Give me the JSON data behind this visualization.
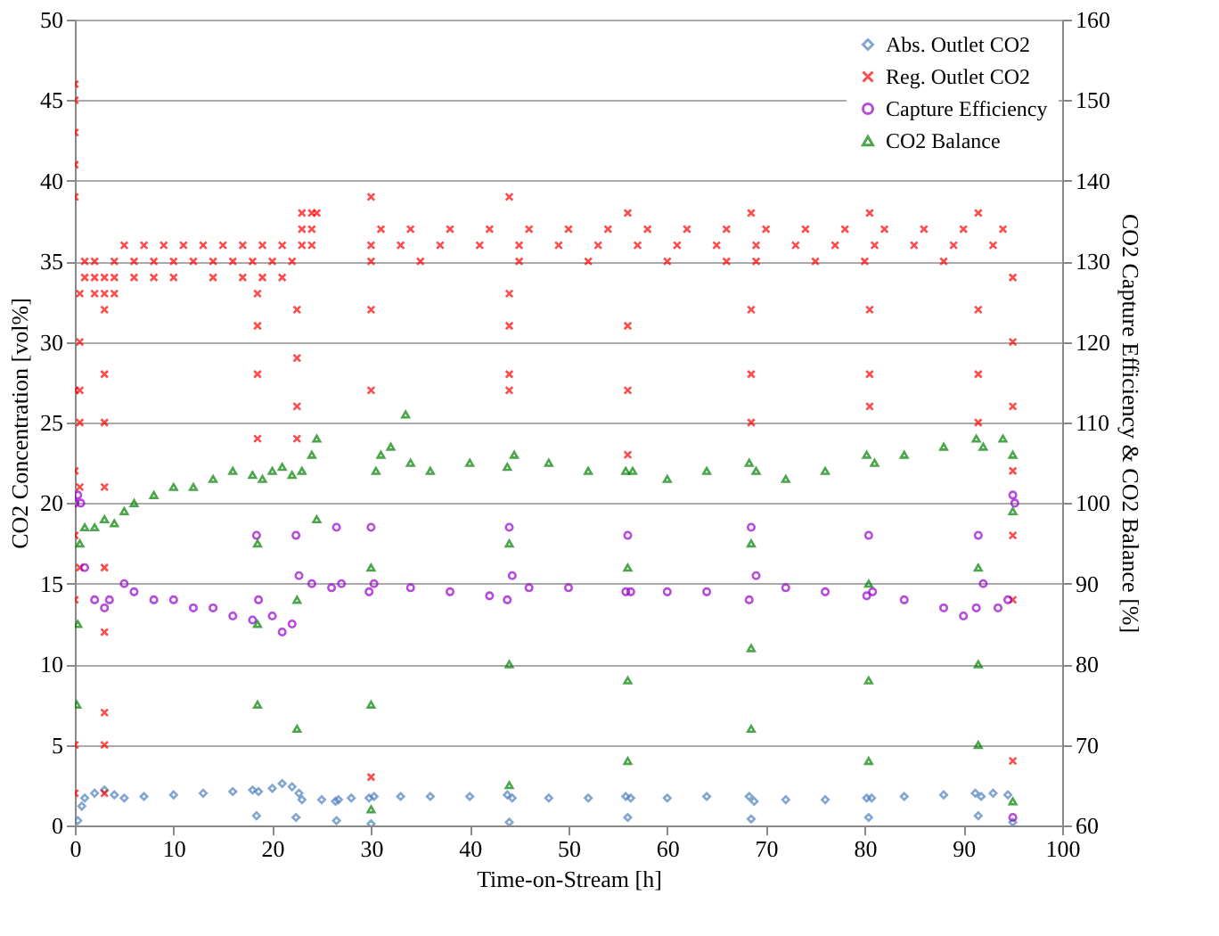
{
  "chart_data": {
    "type": "scatter",
    "xlabel": "Time-on-Stream [h]",
    "ylabel": "CO2 Concentration [vol%]",
    "y2label": "CO2 Capture Efficiency & CO2 Balance [%]",
    "xlim": [
      0,
      100
    ],
    "xticks": [
      0,
      10,
      20,
      30,
      40,
      50,
      60,
      70,
      80,
      90,
      100
    ],
    "ylim": [
      0,
      50
    ],
    "yticks": [
      0,
      5,
      10,
      15,
      20,
      25,
      30,
      35,
      40,
      45,
      50
    ],
    "y2lim": [
      60,
      160
    ],
    "y2ticks": [
      60,
      70,
      80,
      90,
      100,
      110,
      120,
      130,
      140,
      150,
      160
    ],
    "grid": "y",
    "legend": "top right",
    "series": [
      {
        "name": "Abs. Outlet CO2",
        "color": "#4f81bd",
        "marker": "diamond",
        "x": [
          0.3,
          0.7,
          1,
          2,
          3,
          4,
          5,
          7,
          10,
          13,
          16,
          18,
          18.4,
          18.6,
          20,
          21,
          22,
          22.4,
          22.7,
          23,
          25,
          26.4,
          26.5,
          26.7,
          28,
          29.8,
          30,
          30.3,
          33,
          36,
          40,
          43.8,
          44,
          44.3,
          48,
          52,
          55.8,
          56,
          56.3,
          60,
          64,
          68.3,
          68.5,
          68.8,
          72,
          76,
          80.2,
          80.4,
          80.7,
          84,
          88,
          91.2,
          91.5,
          91.8,
          93,
          94.5,
          95
        ],
        "values": [
          0.3,
          1.2,
          1.7,
          2.0,
          2.2,
          1.9,
          1.7,
          1.8,
          1.9,
          2.0,
          2.1,
          2.2,
          0.6,
          2.1,
          2.3,
          2.6,
          2.4,
          0.5,
          2.0,
          1.6,
          1.6,
          1.5,
          0.3,
          1.6,
          1.7,
          1.7,
          0.1,
          1.8,
          1.8,
          1.8,
          1.8,
          1.9,
          0.2,
          1.7,
          1.7,
          1.7,
          1.8,
          0.5,
          1.7,
          1.7,
          1.8,
          1.8,
          0.4,
          1.5,
          1.6,
          1.6,
          1.7,
          0.5,
          1.7,
          1.8,
          1.9,
          2.0,
          0.6,
          1.8,
          2.0,
          1.9,
          0.2
        ]
      },
      {
        "name": "Reg. Outlet CO2",
        "color": "#ff0000",
        "marker": "cross",
        "x": [
          0,
          0,
          0,
          0,
          0,
          0,
          0,
          0,
          0,
          0,
          0,
          0.5,
          0.5,
          0.5,
          0.5,
          0.5,
          0.5,
          3,
          3,
          3,
          3,
          3,
          3,
          3,
          3,
          3,
          1,
          2,
          4,
          6,
          8,
          10,
          12,
          14,
          16,
          18,
          20,
          22,
          1,
          2,
          3,
          4,
          6,
          8,
          10,
          14,
          17,
          19,
          21,
          2,
          3,
          4,
          5,
          7,
          9,
          11,
          13,
          15,
          17,
          19,
          21,
          23,
          24,
          23,
          24,
          23,
          24,
          24.5,
          18.5,
          18.5,
          18.5,
          18.5,
          22.5,
          22.5,
          22.5,
          22.5,
          30,
          30,
          30,
          30,
          31,
          34,
          38,
          42,
          46,
          50,
          54,
          58,
          62,
          66,
          70,
          74,
          78,
          82,
          86,
          90,
          94,
          30,
          33,
          37,
          41,
          45,
          49,
          53,
          57,
          61,
          65,
          69,
          73,
          77,
          81,
          85,
          89,
          93,
          30,
          35,
          45,
          52,
          60,
          66,
          69,
          75,
          80,
          88,
          44,
          44,
          44,
          44,
          44,
          56,
          56,
          56,
          56,
          68.5,
          68.5,
          68.5,
          68.5,
          80.5,
          80.5,
          80.5,
          80.5,
          91.5,
          91.5,
          91.5,
          91.5,
          95,
          95,
          95,
          95,
          95,
          95,
          95
        ],
        "values": [
          46,
          45,
          43,
          41,
          39,
          27,
          22,
          18,
          14,
          5,
          2,
          33,
          30,
          27,
          25,
          21,
          16,
          32,
          28,
          25,
          21,
          16,
          12,
          7,
          5,
          2,
          35,
          35,
          35,
          35,
          35,
          35,
          35,
          35,
          35,
          35,
          35,
          35,
          34,
          34,
          34,
          34,
          34,
          34,
          34,
          34,
          34,
          34,
          34,
          33,
          33,
          33,
          36,
          36,
          36,
          36,
          36,
          36,
          36,
          36,
          36,
          36,
          36,
          37,
          37,
          38,
          38,
          38,
          33,
          31,
          28,
          24,
          32,
          29,
          26,
          24,
          39,
          32,
          27,
          3,
          37,
          37,
          37,
          37,
          37,
          37,
          37,
          37,
          37,
          37,
          37,
          37,
          37,
          37,
          37,
          37,
          37,
          36,
          36,
          36,
          36,
          36,
          36,
          36,
          36,
          36,
          36,
          36,
          36,
          36,
          36,
          36,
          36,
          36,
          35,
          35,
          35,
          35,
          35,
          35,
          35,
          35,
          35,
          35,
          39,
          33,
          31,
          28,
          27,
          38,
          31,
          27,
          23,
          38,
          32,
          28,
          25,
          38,
          32,
          28,
          26,
          38,
          32,
          28,
          25,
          34,
          30,
          26,
          22,
          18,
          14,
          4
        ]
      },
      {
        "name": "Capture Efficiency",
        "color": "#9900cc",
        "marker": "circle",
        "axis": "y2",
        "x": [
          0,
          0.3,
          0.6,
          1,
          2,
          3,
          3.5,
          5,
          6,
          8,
          10,
          12,
          14,
          16,
          18,
          18.4,
          18.6,
          20,
          21,
          22,
          22.4,
          22.7,
          24,
          26,
          26.5,
          27,
          29.8,
          30,
          30.3,
          34,
          38,
          42,
          43.8,
          44,
          44.3,
          46,
          50,
          55.8,
          56,
          56.3,
          60,
          64,
          68.3,
          68.5,
          69,
          72,
          76,
          80.2,
          80.4,
          80.8,
          84,
          88,
          90,
          91.3,
          91.5,
          92,
          93.5,
          94.5,
          95,
          95.2,
          95
        ],
        "values": [
          100,
          101,
          100,
          92,
          88,
          87,
          88,
          90,
          89,
          88,
          88,
          87,
          87,
          86,
          85.5,
          96,
          88,
          86,
          84,
          85,
          96,
          91,
          90,
          89.5,
          97,
          90,
          89,
          97,
          90,
          89.5,
          89,
          88.5,
          88,
          97,
          91,
          89.5,
          89.5,
          89,
          96,
          89,
          89,
          89,
          88,
          97,
          91,
          89.5,
          89,
          88.5,
          96,
          89,
          88,
          87,
          86,
          87,
          96,
          90,
          87,
          88,
          101,
          100,
          61
        ]
      },
      {
        "name": "CO2 Balance",
        "color": "#008000",
        "marker": "triangle",
        "axis": "y2",
        "x": [
          0.2,
          0.3,
          0.5,
          1,
          2,
          3,
          4,
          5,
          6,
          8,
          10,
          12,
          14,
          16,
          18,
          18.5,
          18.5,
          18.5,
          19,
          20,
          21,
          22,
          22.5,
          22.5,
          23,
          24,
          24.5,
          24.5,
          30,
          30,
          30,
          30.5,
          31,
          32,
          33.5,
          34,
          36,
          40,
          43.8,
          44,
          44,
          44,
          44.5,
          48,
          52,
          55.8,
          56,
          56,
          56,
          56.5,
          60,
          64,
          68.3,
          68.5,
          68.5,
          68.5,
          69,
          72,
          76,
          80.2,
          80.4,
          80.4,
          80.4,
          81,
          84,
          88,
          91.3,
          91.5,
          91.5,
          91.5,
          92,
          94,
          95,
          95,
          95
        ],
        "values": [
          75,
          85,
          95,
          97,
          97,
          98,
          97.5,
          99,
          100,
          101,
          102,
          102,
          103,
          104,
          103.5,
          75,
          85,
          95,
          103,
          104,
          104.5,
          103.5,
          72,
          88,
          104,
          106,
          108,
          98,
          62,
          75,
          92,
          104,
          106,
          107,
          111,
          105,
          104,
          105,
          104.5,
          65,
          80,
          95,
          106,
          105,
          104,
          104,
          68,
          78,
          92,
          104,
          103,
          104,
          105,
          72,
          82,
          95,
          104,
          103,
          104,
          106,
          68,
          78,
          90,
          105,
          106,
          107,
          108,
          70,
          80,
          92,
          107,
          108,
          106,
          99,
          63
        ]
      }
    ]
  }
}
